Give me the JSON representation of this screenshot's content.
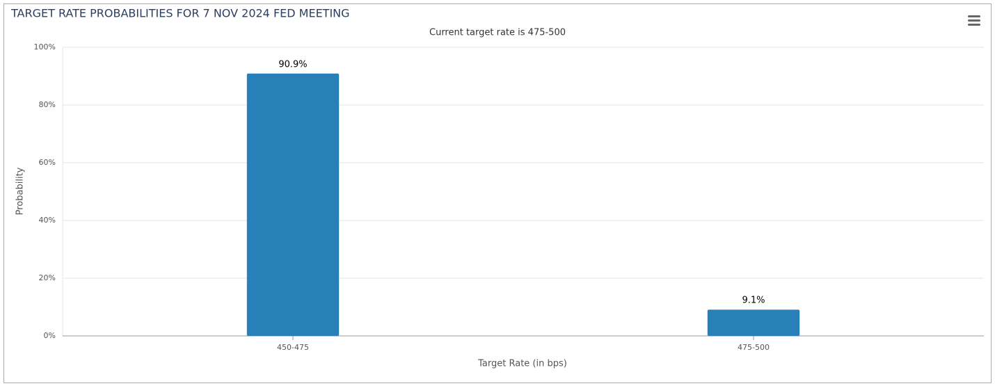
{
  "chart_data": {
    "type": "bar",
    "title": "TARGET RATE PROBABILITIES FOR 7 NOV 2024 FED MEETING",
    "subtitle": "Current target rate is 475-500",
    "x_label": "Target Rate (in bps)",
    "y_label": "Probability",
    "categories": [
      "450-475",
      "475-500"
    ],
    "values": [
      90.9,
      9.1
    ],
    "value_labels": [
      "90.9%",
      "9.1%"
    ],
    "color": "#2980b9",
    "ylim": [
      0,
      100
    ],
    "yticks": [
      {
        "value": 0,
        "label": "0%"
      },
      {
        "value": 20,
        "label": "20%"
      },
      {
        "value": 40,
        "label": "40%"
      },
      {
        "value": 60,
        "label": "60%"
      },
      {
        "value": 80,
        "label": "80%"
      },
      {
        "value": 100,
        "label": "100%"
      }
    ],
    "grid": true
  }
}
